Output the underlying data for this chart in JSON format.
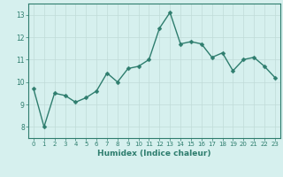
{
  "x": [
    0,
    1,
    2,
    3,
    4,
    5,
    6,
    7,
    8,
    9,
    10,
    11,
    12,
    13,
    14,
    15,
    16,
    17,
    18,
    19,
    20,
    21,
    22,
    23
  ],
  "y": [
    9.7,
    8.0,
    9.5,
    9.4,
    9.1,
    9.3,
    9.6,
    10.4,
    10.0,
    10.6,
    10.7,
    11.0,
    12.4,
    13.1,
    11.7,
    11.8,
    11.7,
    11.1,
    11.3,
    10.5,
    11.0,
    11.1,
    10.7,
    10.2
  ],
  "line_color": "#2e7d6e",
  "marker_color": "#2e7d6e",
  "bg_color": "#d6f0ee",
  "grid_color": "#c0dbd8",
  "xlabel": "Humidex (Indice chaleur)",
  "ylim": [
    7.5,
    13.5
  ],
  "xlim": [
    -0.5,
    23.5
  ],
  "yticks": [
    8,
    9,
    10,
    11,
    12,
    13
  ],
  "xticks": [
    0,
    1,
    2,
    3,
    4,
    5,
    6,
    7,
    8,
    9,
    10,
    11,
    12,
    13,
    14,
    15,
    16,
    17,
    18,
    19,
    20,
    21,
    22,
    23
  ],
  "tick_color": "#2e7d6e",
  "spine_color": "#2e7d6e",
  "font_color": "#2e7d6e",
  "linewidth": 1.0,
  "markersize": 2.5
}
